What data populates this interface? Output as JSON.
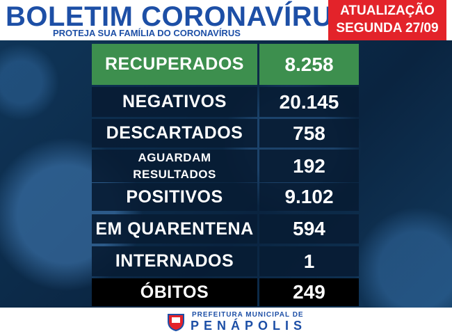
{
  "header": {
    "title": "BOLETIM CORONAVÍRUS",
    "subtitle": "PROTEJA SUA FAMÍLIA DO CORONAVÍRUS",
    "update_label": "ATUALIZAÇÃO",
    "update_date": "SEGUNDA 27/09"
  },
  "table": {
    "rows": [
      [
        "RECUPERADOS",
        "8.258"
      ],
      [
        "NEGATIVOS",
        "20.145"
      ],
      [
        "DESCARTADOS",
        "758"
      ],
      [
        "AGUARDAM\nRESULTADOS",
        "192"
      ],
      [
        "POSITIVOS",
        "9.102"
      ],
      [
        "EM QUARENTENA",
        "594"
      ],
      [
        "INTERNADOS",
        "1"
      ],
      [
        "ÓBITOS",
        "249"
      ]
    ]
  },
  "footer": {
    "line1": "PREFEITURA MUNICIPAL DE",
    "line2": "PENÁPOLIS"
  }
}
